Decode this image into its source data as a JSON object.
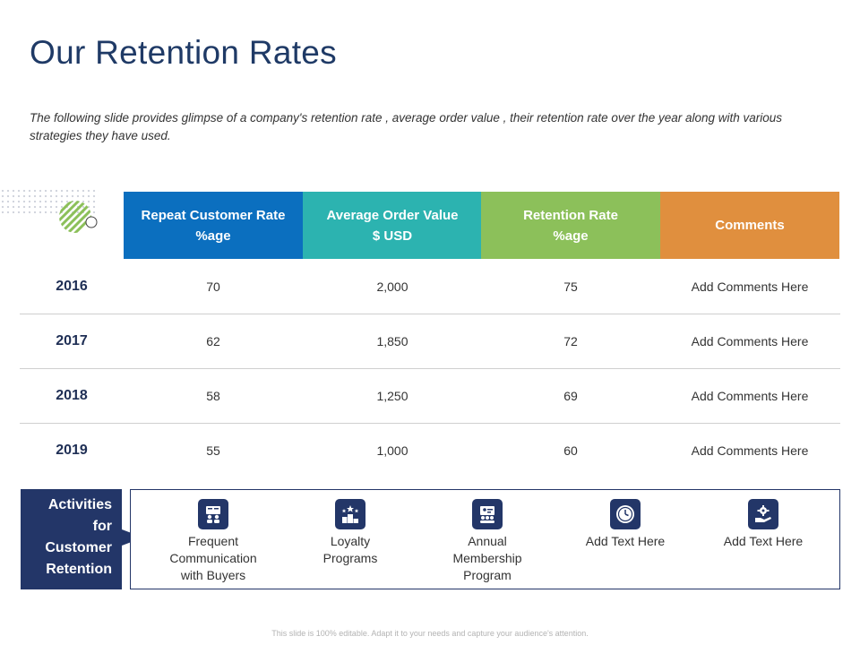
{
  "slide": {
    "title": "Our Retention Rates",
    "subtitle": "The following slide provides glimpse of a company's retention rate , average order value , their retention rate over the year along with various strategies they have used.",
    "footer": "This slide is 100% editable. Adapt it to your needs and capture your audience's attention."
  },
  "table": {
    "headers": [
      {
        "label": "Repeat Customer Rate\n%age",
        "color": "#0b6fbf"
      },
      {
        "label": "Average Order Value\n$ USD",
        "color": "#2cb3b0"
      },
      {
        "label": "Retention Rate\n%age",
        "color": "#8cc05a"
      },
      {
        "label": "Comments",
        "color": "#e08f3e"
      }
    ],
    "rows": [
      {
        "year": "2016",
        "repeat": "70",
        "aov": "2,000",
        "retention": "75",
        "comment": "Add Comments Here"
      },
      {
        "year": "2017",
        "repeat": "62",
        "aov": "1,850",
        "retention": "72",
        "comment": "Add Comments Here"
      },
      {
        "year": "2018",
        "repeat": "58",
        "aov": "1,250",
        "retention": "69",
        "comment": "Add Comments Here"
      },
      {
        "year": "2019",
        "repeat": "55",
        "aov": "1,000",
        "retention": "60",
        "comment": "Add Comments Here"
      }
    ]
  },
  "activities": {
    "label_lines": [
      "Activities",
      "for",
      "Customer",
      "Retention"
    ],
    "items": [
      {
        "label": "Frequent\nCommunication\nwith Buyers",
        "icon": "buyers-communication-icon"
      },
      {
        "label": "Loyalty\nPrograms",
        "icon": "loyalty-podium-icon"
      },
      {
        "label": "Annual\nMembership\nProgram",
        "icon": "membership-group-icon"
      },
      {
        "label": "Add Text Here",
        "icon": "clock-icon"
      },
      {
        "label": "Add Text Here",
        "icon": "hand-gear-icon"
      }
    ]
  },
  "colors": {
    "title": "#1f3a66",
    "navy": "#233668",
    "blue": "#0b6fbf",
    "teal": "#2cb3b0",
    "green": "#8cc05a",
    "orange": "#e08f3e"
  }
}
